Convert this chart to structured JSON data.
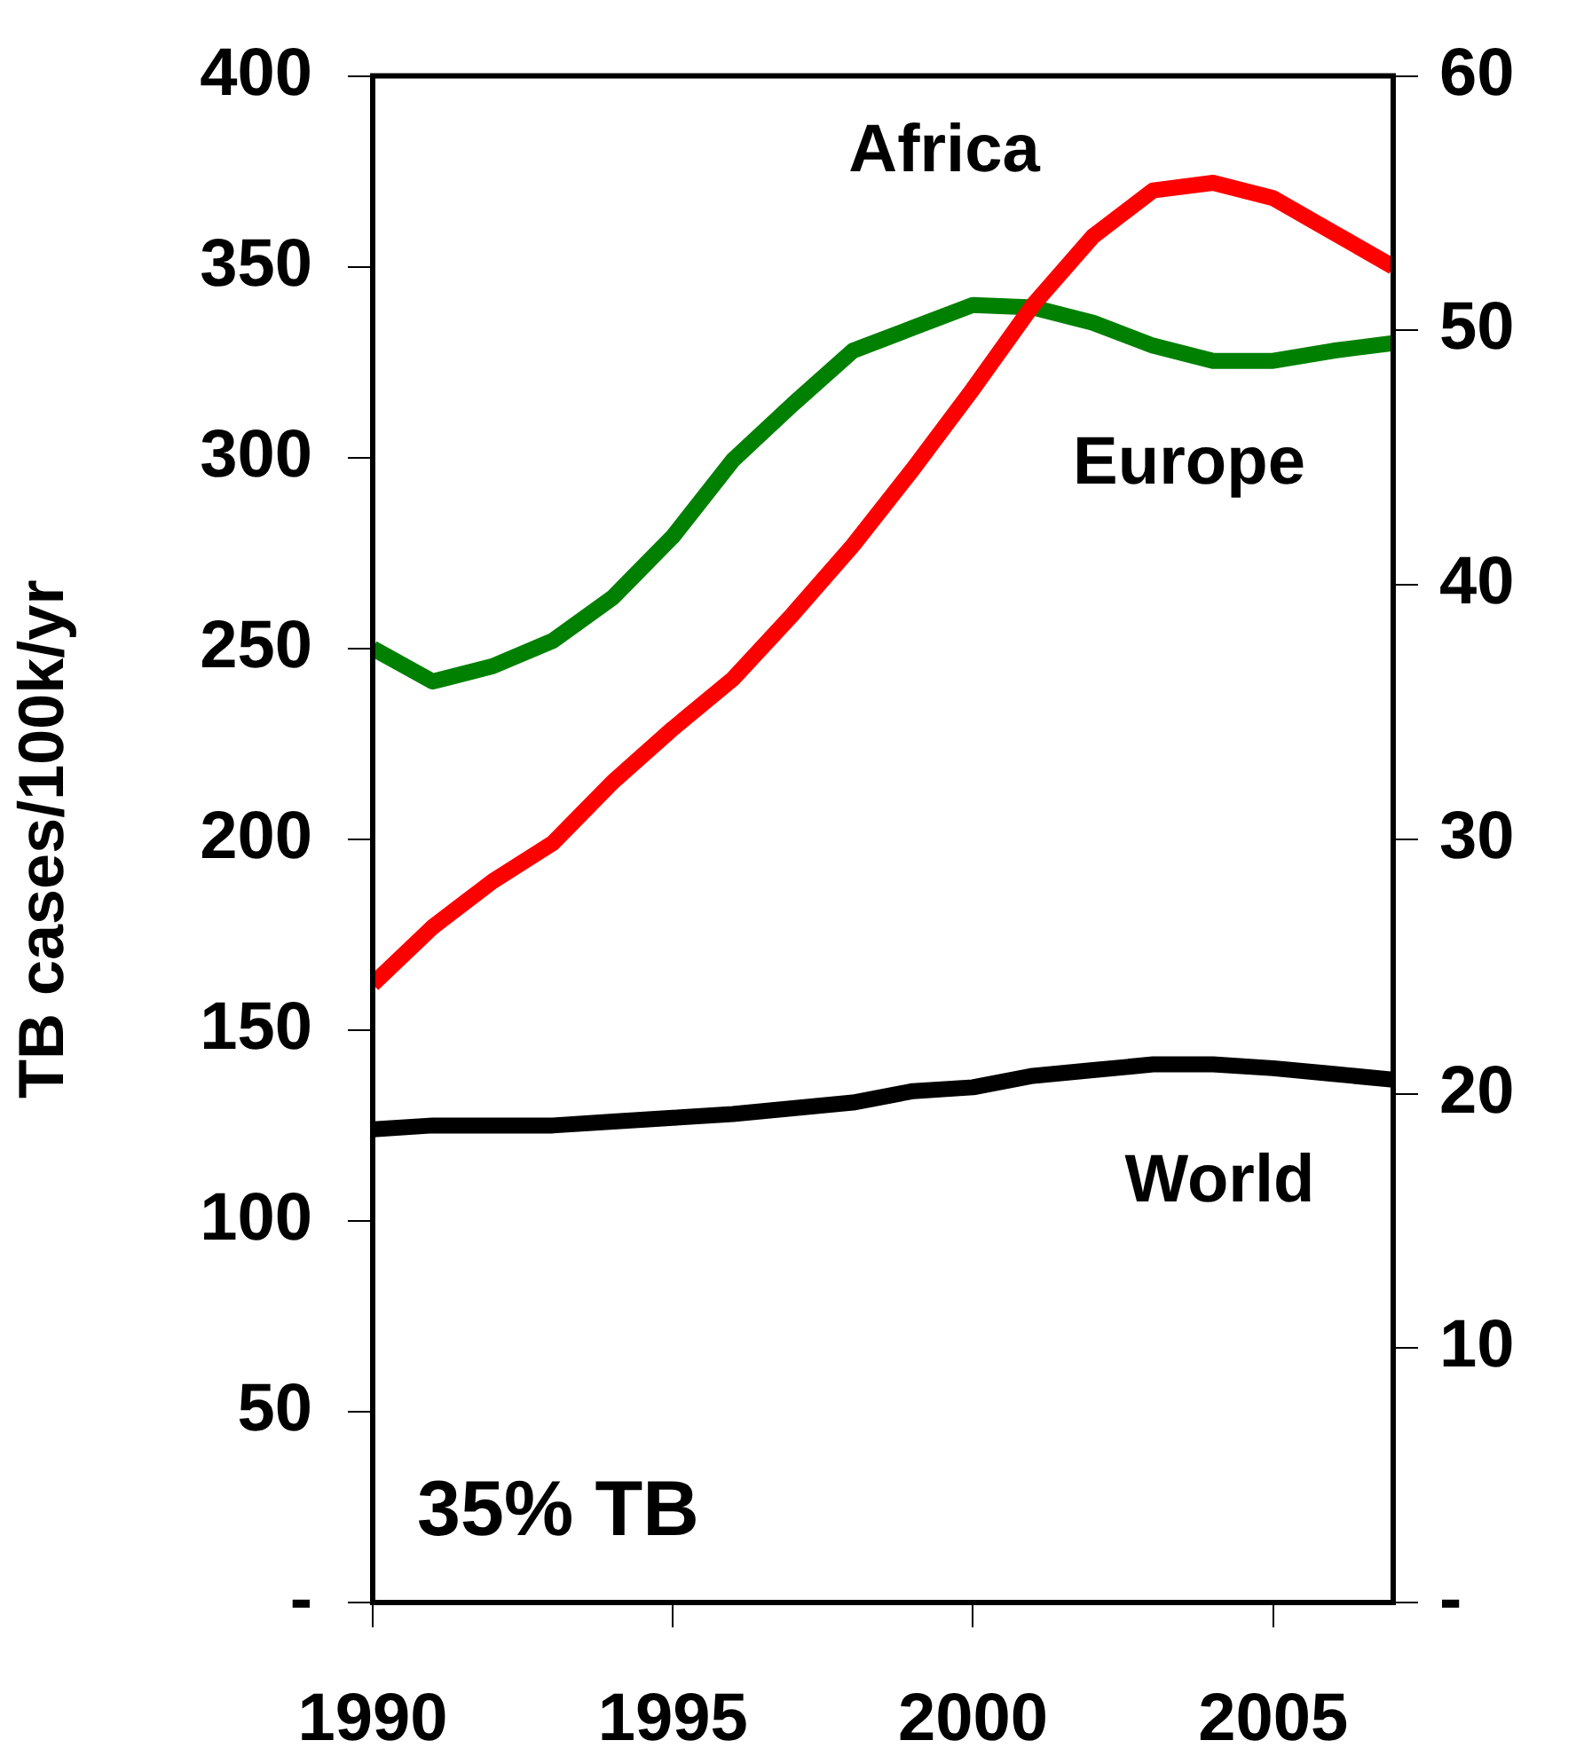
{
  "chart_data": {
    "type": "line",
    "ylabel": "TB cases/100k/yr",
    "x": [
      1990,
      1991,
      1992,
      1993,
      1994,
      1995,
      1996,
      1997,
      1998,
      1999,
      2000,
      2001,
      2002,
      2003,
      2004,
      2005,
      2006,
      2007
    ],
    "series": [
      {
        "name": "Africa",
        "color": "#ff0000",
        "values": [
          162,
          177,
          189,
          199,
          215,
          229,
          242,
          259,
          277,
          297,
          318,
          340,
          358,
          370,
          372,
          368,
          359,
          350
        ]
      },
      {
        "name": "Europe",
        "color": "#008000",
        "axis": "y2",
        "values": [
          37.5,
          36.2,
          36.8,
          37.8,
          39.5,
          41.9,
          44.9,
          47.1,
          49.2,
          50.1,
          51,
          50.9,
          50.3,
          49.4,
          48.8,
          48.8,
          49.2,
          49.5
        ]
      },
      {
        "name": "World",
        "color": "#000000",
        "values": [
          124,
          125,
          125,
          125,
          126,
          127,
          128,
          129.5,
          131,
          134,
          135,
          138,
          139.5,
          141,
          141,
          140,
          138.5,
          137
        ]
      }
    ],
    "xlim": [
      1990,
      2007
    ],
    "xticks": [
      1990,
      1995,
      2000,
      2005
    ],
    "ylim": [
      0,
      400
    ],
    "yticks": [
      {
        "value": 0,
        "label": "-"
      },
      50,
      100,
      150,
      200,
      250,
      300,
      350,
      400
    ],
    "y2lim": [
      0,
      60
    ],
    "y2ticks": [
      {
        "value": 0,
        "label": "-"
      },
      10,
      20,
      30,
      40,
      50,
      60
    ],
    "annotations": [
      "35% TB"
    ],
    "grid": false,
    "legend": false,
    "marker": "none",
    "line_style": "solid"
  }
}
